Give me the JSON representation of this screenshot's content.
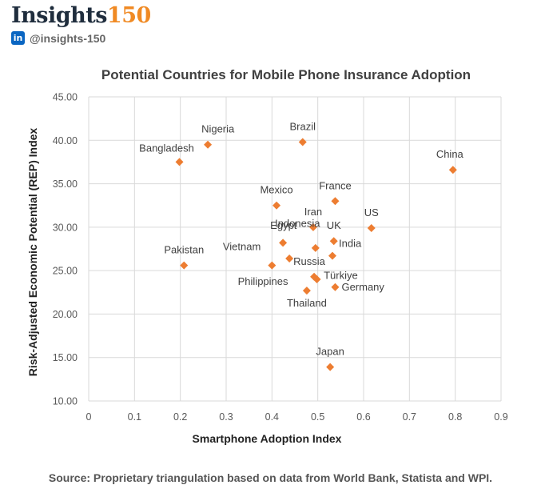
{
  "brand": {
    "logo_text": "Insights",
    "logo_number": "150",
    "linkedin_glyph": "in",
    "handle": "@insights-150",
    "linkedin_icon": "linkedin-icon",
    "accent_color": "#f08a24"
  },
  "chart_data": {
    "type": "scatter",
    "title": "Potential Countries for Mobile Phone Insurance Adoption",
    "xlabel": "Smartphone Adoption Index",
    "ylabel": "Risk-Adjusted Economic Potential (REP) Index",
    "xlim": [
      0,
      0.9
    ],
    "ylim": [
      10,
      45
    ],
    "x_ticks": [
      "0",
      "0.1",
      "0.2",
      "0.3",
      "0.4",
      "0.5",
      "0.6",
      "0.7",
      "0.8",
      "0.9"
    ],
    "y_ticks": [
      "10.00",
      "15.00",
      "20.00",
      "25.00",
      "30.00",
      "35.00",
      "40.00",
      "45.00"
    ],
    "grid": true,
    "marker": "diamond",
    "marker_color": "#ed7d31",
    "points": [
      {
        "label": "Nigeria",
        "x": 0.26,
        "y": 39.5
      },
      {
        "label": "Brazil",
        "x": 0.467,
        "y": 39.8
      },
      {
        "label": "Bangladesh",
        "x": 0.198,
        "y": 37.5
      },
      {
        "label": "China",
        "x": 0.795,
        "y": 36.6
      },
      {
        "label": "France",
        "x": 0.538,
        "y": 33.0
      },
      {
        "label": "Mexico",
        "x": 0.41,
        "y": 32.5
      },
      {
        "label": "Iran",
        "x": 0.49,
        "y": 30.0
      },
      {
        "label": "US",
        "x": 0.617,
        "y": 29.9
      },
      {
        "label": "Egypt",
        "x": 0.495,
        "y": 27.6
      },
      {
        "label": "UK",
        "x": 0.535,
        "y": 28.4
      },
      {
        "label": "Indonesia",
        "x": 0.424,
        "y": 28.2
      },
      {
        "label": "Vietnam",
        "x": 0.4,
        "y": 25.6
      },
      {
        "label": "India",
        "x": 0.532,
        "y": 26.7
      },
      {
        "label": "Pakistan",
        "x": 0.208,
        "y": 25.6
      },
      {
        "label": "Russia",
        "x": 0.438,
        "y": 26.4
      },
      {
        "label": "Türkiye",
        "x": 0.492,
        "y": 24.3
      },
      {
        "label": "Philippines",
        "x": 0.498,
        "y": 24.0
      },
      {
        "label": "Germany",
        "x": 0.538,
        "y": 23.1
      },
      {
        "label": "Thailand",
        "x": 0.476,
        "y": 22.7
      },
      {
        "label": "Japan",
        "x": 0.527,
        "y": 13.9
      }
    ]
  },
  "footer": {
    "source": "Source: Proprietary triangulation based on data from World Bank, Statista and WPI."
  }
}
